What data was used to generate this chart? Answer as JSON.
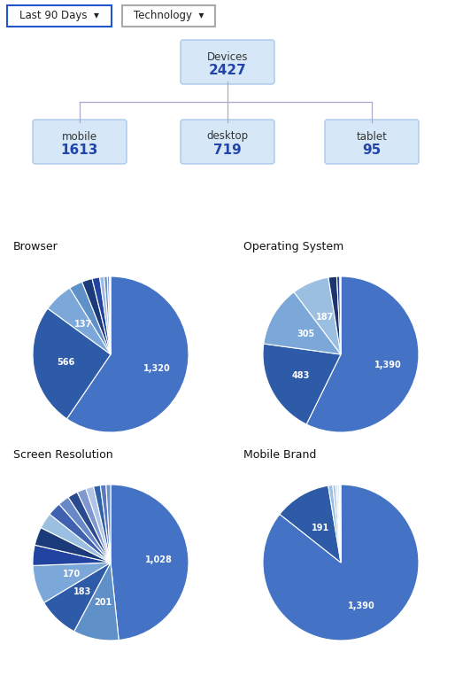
{
  "tree": {
    "root": {
      "label": "Devices",
      "value": "2427"
    },
    "children": [
      {
        "label": "mobile",
        "value": "1613"
      },
      {
        "label": "desktop",
        "value": "719"
      },
      {
        "label": "tablet",
        "value": "95"
      }
    ]
  },
  "browser": {
    "title": "Browser",
    "values": [
      1320,
      566,
      137,
      62,
      48,
      35,
      20,
      15,
      10,
      5
    ],
    "colors": [
      "#4472c4",
      "#2e5ba8",
      "#7ba7d9",
      "#6090c8",
      "#1a3a7a",
      "#2244a0",
      "#a0b8e0",
      "#7090c8",
      "#8098d0",
      "#b0c4e8"
    ],
    "labels": [
      "1,320",
      "566",
      "137",
      "",
      "",
      "",
      "",
      "",
      "",
      ""
    ]
  },
  "os": {
    "title": "Operating System",
    "values": [
      1390,
      483,
      305,
      187,
      42,
      15,
      5
    ],
    "colors": [
      "#4472c4",
      "#2e5ba8",
      "#7ba7d9",
      "#9bbfe0",
      "#1a3570",
      "#2a4090",
      "#5b7fc8"
    ],
    "labels": [
      "1,390",
      "483",
      "305",
      "187",
      "",
      "",
      ""
    ]
  },
  "screen": {
    "title": "Screen Resolution",
    "values": [
      1028,
      201,
      183,
      170,
      90,
      80,
      70,
      60,
      50,
      45,
      40,
      35,
      30,
      25,
      20
    ],
    "colors": [
      "#4472c4",
      "#6090c8",
      "#2e5ba8",
      "#7ba7d9",
      "#2244a0",
      "#1a3a7a",
      "#9bbfe0",
      "#4060b0",
      "#6888c8",
      "#2a4a90",
      "#8098d0",
      "#b0c4e8",
      "#3060a8",
      "#5878c0",
      "#7090c8"
    ],
    "labels": [
      "1,028",
      "201",
      "183",
      "170",
      "",
      "",
      "",
      "",
      "",
      "",
      "",
      "",
      "",
      "",
      ""
    ]
  },
  "mobile_brand": {
    "title": "Mobile Brand",
    "values": [
      1390,
      191,
      15,
      10,
      7,
      5,
      3,
      2
    ],
    "colors": [
      "#4472c4",
      "#2e5ba8",
      "#9bbfe0",
      "#b0c4e8",
      "#d0dff0",
      "#c0d0e8",
      "#a8bcdc",
      "#e0eaf5"
    ],
    "labels": [
      "1,390",
      "191",
      "",
      "",
      "",
      "",
      "",
      ""
    ]
  },
  "bg_color": "#ffffff",
  "box_fill": "#d6e8f7",
  "box_edge": "#a8c8e8",
  "box_text_label": "#333333",
  "box_text_value": "#2244aa",
  "dropdown1_text": "Last 90 Days  ▾",
  "dropdown2_text": "Technology  ▾",
  "dropdown1_edge": "#2255cc",
  "dropdown2_edge": "#aaaaaa",
  "pie_title_fontsize": 9,
  "pie_label_fontsize": 7
}
